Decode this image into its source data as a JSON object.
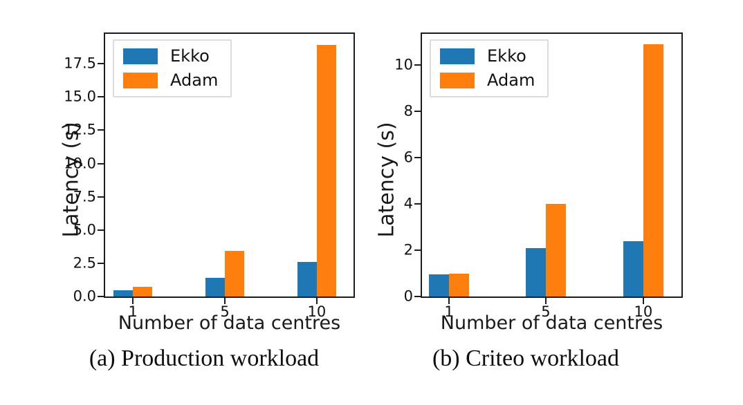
{
  "figure": {
    "background": "#ffffff",
    "axis_color": "#1c1c1c",
    "series_colors": {
      "ekko": "#1f77b4",
      "adam": "#ff7f0e"
    }
  },
  "chart_data": [
    {
      "type": "bar",
      "caption": "(a) Production workload",
      "xlabel": "Number of data centres",
      "ylabel": "Latency (s)",
      "categories": [
        "1",
        "5",
        "10"
      ],
      "series": [
        {
          "name": "Ekko",
          "color": "#1f77b4",
          "values": [
            0.45,
            1.4,
            2.6
          ]
        },
        {
          "name": "Adam",
          "color": "#ff7f0e",
          "values": [
            0.75,
            3.45,
            18.9
          ]
        }
      ],
      "ylim": [
        0,
        19.75
      ],
      "yticks": [
        0,
        2.5,
        5,
        7.5,
        10,
        12.5,
        15,
        17.5
      ],
      "ytick_labels": [
        "0.0",
        "2.5",
        "5.0",
        "7.5",
        "10.0",
        "12.5",
        "15.0",
        "17.5"
      ],
      "legend": {
        "position": "upper left",
        "entries": [
          "Ekko",
          "Adam"
        ]
      },
      "grid": false
    },
    {
      "type": "bar",
      "caption": "(b) Criteo workload",
      "xlabel": "Number of data centres",
      "ylabel": "Latency (s)",
      "categories": [
        "1",
        "5",
        "10"
      ],
      "series": [
        {
          "name": "Ekko",
          "color": "#1f77b4",
          "values": [
            0.95,
            2.1,
            2.4
          ]
        },
        {
          "name": "Adam",
          "color": "#ff7f0e",
          "values": [
            1.0,
            4.0,
            10.9
          ]
        }
      ],
      "ylim": [
        0,
        11.35
      ],
      "yticks": [
        0,
        2,
        4,
        6,
        8,
        10
      ],
      "ytick_labels": [
        "0",
        "2",
        "4",
        "6",
        "8",
        "10"
      ],
      "legend": {
        "position": "upper left",
        "entries": [
          "Ekko",
          "Adam"
        ]
      },
      "grid": false
    }
  ]
}
